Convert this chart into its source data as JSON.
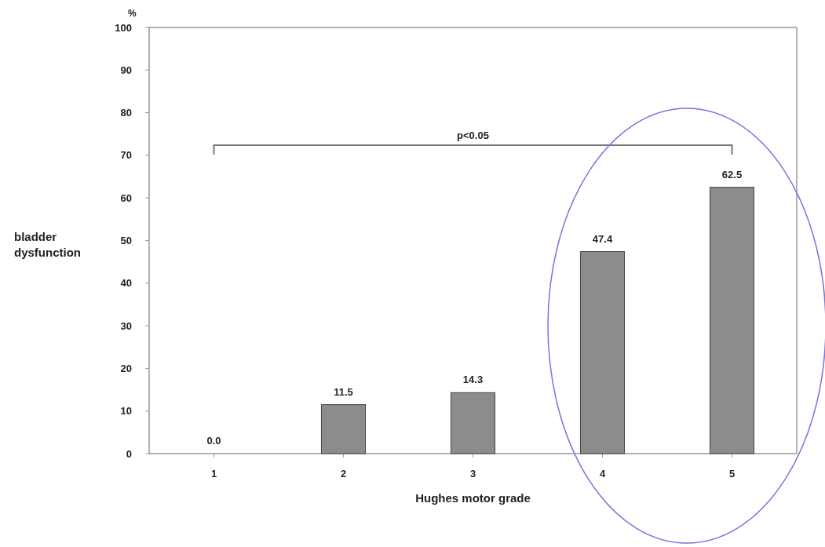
{
  "chart_data": {
    "type": "bar",
    "xlabel": "Hughes motor grade",
    "ylabel": "bladder dysfunction",
    "annotations": [
      "%",
      "p<0.05"
    ],
    "categories": [
      "1",
      "2",
      "3",
      "4",
      "5"
    ],
    "values": [
      0,
      11.5,
      14.3,
      47.4,
      62.5
    ],
    "value_labels": [
      "0.0",
      "11.5",
      "14.3",
      "47.4",
      "62.5"
    ],
    "color": "#8c8c8c",
    "ylim": [
      0,
      100
    ],
    "yticks": [
      0,
      10,
      20,
      30,
      40,
      50,
      60,
      70,
      80,
      90,
      100
    ],
    "grid": false
  }
}
